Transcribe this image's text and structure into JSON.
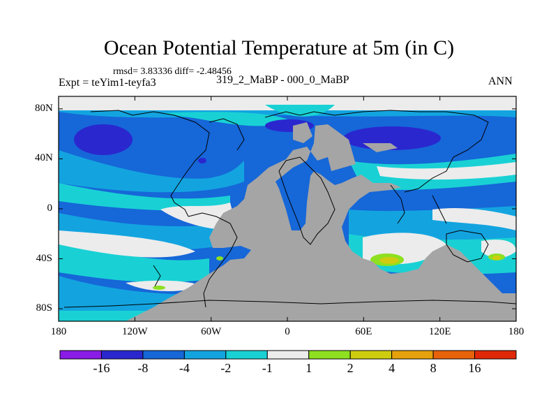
{
  "title": "Ocean Potential Temperature at 5m (in C)",
  "stats": "rmsd= 3.83336  diff= -2.48456",
  "experiment": "Expt = teYim1-teyfa3",
  "subtitle": "319_2_MaBP - 000_0_MaBP",
  "season": "ANN",
  "axes": {
    "y_ticks": [
      {
        "label": "80N",
        "lat": 80
      },
      {
        "label": "40N",
        "lat": 40
      },
      {
        "label": "0",
        "lat": 0
      },
      {
        "label": "40S",
        "lat": -40
      },
      {
        "label": "80S",
        "lat": -80
      }
    ],
    "x_ticks": [
      {
        "label": "180",
        "lon": -180
      },
      {
        "label": "120W",
        "lon": -120
      },
      {
        "label": "60W",
        "lon": -60
      },
      {
        "label": "0",
        "lon": 0
      },
      {
        "label": "60E",
        "lon": 60
      },
      {
        "label": "120E",
        "lon": 120
      },
      {
        "label": "180",
        "lon": 180
      }
    ],
    "lon_range": [
      -180,
      180
    ],
    "lat_range": [
      -90,
      90
    ]
  },
  "colorbar": {
    "colors": [
      "#8a1ce6",
      "#2a27cf",
      "#1667d8",
      "#13a4e0",
      "#19d1d4",
      "#ececec",
      "#8ee020",
      "#cfcc10",
      "#e6a20c",
      "#e8620a",
      "#e02808"
    ],
    "labels": [
      "-16",
      "-8",
      "-4",
      "-2",
      "-1",
      "1",
      "2",
      "4",
      "8",
      "16"
    ]
  },
  "land_color": "#a5a5a5"
}
